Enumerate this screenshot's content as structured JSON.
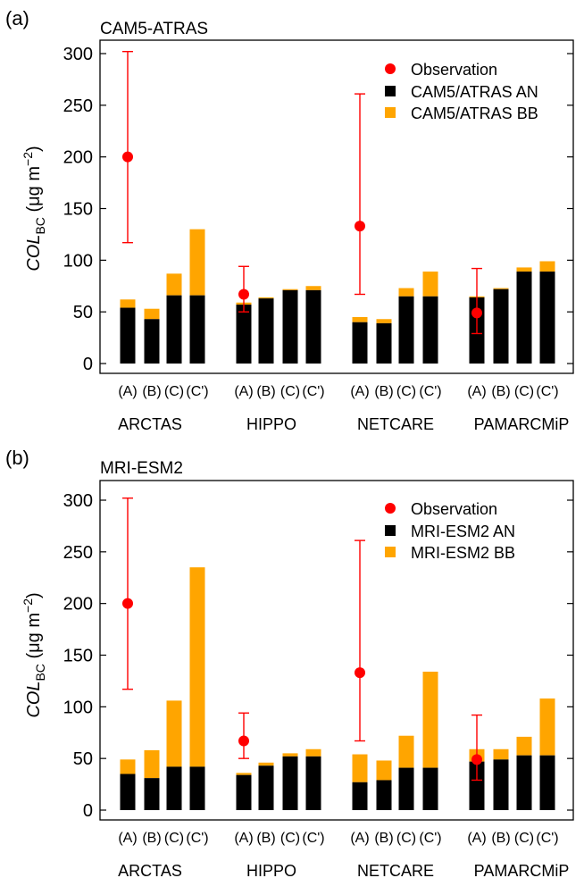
{
  "colors": {
    "anthropogenic": "#000000",
    "biomass": "#FFA500",
    "observation": "#FF0000",
    "axis": "#000000"
  },
  "chart_data": [
    {
      "type": "bar",
      "panel_label": "(a)",
      "title": "CAM5-ATRAS",
      "ylabel_main": "COL",
      "ylabel_sub": "BC",
      "ylabel_unit": " (μg m",
      "ylabel_exp": "−2",
      "ylabel_close": ")",
      "ylim": [
        0,
        300
      ],
      "yticks": [
        0,
        50,
        100,
        150,
        200,
        250,
        300
      ],
      "grid": false,
      "legend_position": "top-right",
      "legend": [
        "Observation",
        "CAM5/ATRAS AN",
        "CAM5/ATRAS BB"
      ],
      "groups": [
        "ARCTAS",
        "HIPPO",
        "NETCARE",
        "PAMARCMiP"
      ],
      "subcategories": [
        "(A)",
        "(B)",
        "(C)",
        "(C')"
      ],
      "series": [
        {
          "name": "CAM5/ATRAS AN",
          "values": [
            [
              54,
              43,
              66,
              66
            ],
            [
              57,
              63,
              71,
              71
            ],
            [
              40,
              39,
              65,
              65
            ],
            [
              64,
              72,
              89,
              89
            ]
          ]
        },
        {
          "name": "CAM5/ATRAS BB",
          "values": [
            [
              8,
              10,
              21,
              64
            ],
            [
              2,
              1,
              1,
              4
            ],
            [
              5,
              4,
              8,
              24
            ],
            [
              1,
              1,
              4,
              10
            ]
          ]
        }
      ],
      "observations": [
        {
          "group": "ARCTAS",
          "index": 0,
          "value": 200,
          "low": 117,
          "high": 302
        },
        {
          "group": "HIPPO",
          "index": 0,
          "value": 67,
          "low": 50,
          "high": 94
        },
        {
          "group": "NETCARE",
          "index": 0,
          "value": 133,
          "low": 67,
          "high": 261
        },
        {
          "group": "PAMARCMiP",
          "index": 0,
          "value": 49,
          "low": 29,
          "high": 92
        }
      ]
    },
    {
      "type": "bar",
      "panel_label": "(b)",
      "title": "MRI-ESM2",
      "ylabel_main": "COL",
      "ylabel_sub": "BC",
      "ylabel_unit": " (μg m",
      "ylabel_exp": "−2",
      "ylabel_close": ")",
      "ylim": [
        0,
        300
      ],
      "yticks": [
        0,
        50,
        100,
        150,
        200,
        250,
        300
      ],
      "grid": false,
      "legend_position": "top-right",
      "legend": [
        "Observation",
        "MRI-ESM2 AN",
        "MRI-ESM2 BB"
      ],
      "groups": [
        "ARCTAS",
        "HIPPO",
        "NETCARE",
        "PAMARCMiP"
      ],
      "subcategories": [
        "(A)",
        "(B)",
        "(C)",
        "(C')"
      ],
      "series": [
        {
          "name": "MRI-ESM2 AN",
          "values": [
            [
              35,
              31,
              42,
              42
            ],
            [
              34,
              43,
              52,
              52
            ],
            [
              27,
              29,
              41,
              41
            ],
            [
              47,
              49,
              53,
              53
            ]
          ]
        },
        {
          "name": "MRI-ESM2 BB",
          "values": [
            [
              14,
              27,
              64,
              193
            ],
            [
              2,
              3,
              3,
              7
            ],
            [
              27,
              19,
              31,
              93
            ],
            [
              12,
              10,
              18,
              55
            ]
          ]
        }
      ],
      "observations": [
        {
          "group": "ARCTAS",
          "index": 0,
          "value": 200,
          "low": 117,
          "high": 302
        },
        {
          "group": "HIPPO",
          "index": 0,
          "value": 67,
          "low": 50,
          "high": 94
        },
        {
          "group": "NETCARE",
          "index": 0,
          "value": 133,
          "low": 67,
          "high": 261
        },
        {
          "group": "PAMARCMiP",
          "index": 0,
          "value": 49,
          "low": 29,
          "high": 92
        }
      ]
    }
  ]
}
